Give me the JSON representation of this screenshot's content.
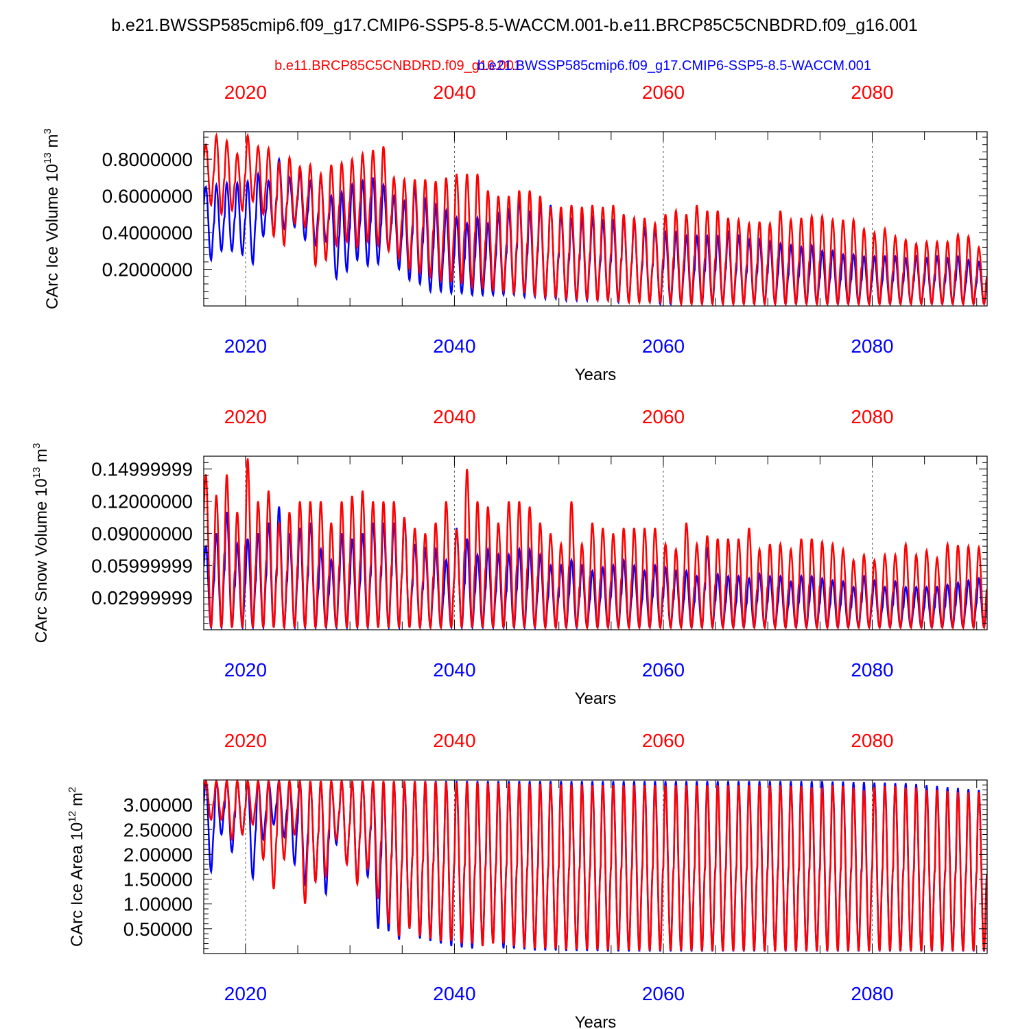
{
  "figure_title": "b.e21.BWSSP585cmip6.f09_g17.CMIP6-SSP5-8.5-WACCM.001-b.e11.BRCP85C5CNBDRD.f09_g16.001",
  "legend": {
    "red_label": "b.e11.BRCP85C5CNBDRD.f09_g16.001",
    "blue_label": "b.e21.BWSSP585cmip6.f09_g17.CMIP6-SSP5-8.5-WACCM.001"
  },
  "colors": {
    "red": "#ff0000",
    "blue": "#0000ff",
    "axis": "#000000",
    "grid": "#555555"
  },
  "chart_data": [
    {
      "type": "line",
      "name": "ice-volume",
      "ylabel": "CArc Ice Volume 10",
      "ylabel_exp": "13",
      "ylabel_unit": " m",
      "ylabel_unit_exp": "3",
      "xlabel": "Years",
      "xlim": [
        2016,
        2091
      ],
      "ylim": [
        0.0,
        0.95
      ],
      "xticks": [
        2020,
        2040,
        2060,
        2080
      ],
      "xtick_labels": [
        "2020",
        "2040",
        "2060",
        "2080"
      ],
      "yticks": [
        0.2,
        0.4,
        0.6,
        0.8
      ],
      "ytick_labels": [
        "0.2000000",
        "0.4000000",
        "0.6000000",
        "0.8000000"
      ],
      "series": [
        {
          "name": "blue",
          "color": "#0000ff",
          "x_start": 2016,
          "peaks": [
            0.65,
            0.66,
            0.67,
            0.67,
            0.68,
            0.72,
            0.68,
            0.8,
            0.7,
            0.73,
            0.68,
            0.7,
            0.6,
            0.62,
            0.66,
            0.68,
            0.7,
            0.66,
            0.6,
            0.57,
            0.65,
            0.58,
            0.55,
            0.52,
            0.48,
            0.45,
            0.48,
            0.45,
            0.5,
            0.52,
            0.58,
            0.52,
            0.55,
            0.55,
            0.5,
            0.48,
            0.48,
            0.48,
            0.46,
            0.46,
            0.48,
            0.46,
            0.42,
            0.42,
            0.4,
            0.4,
            0.38,
            0.38,
            0.38,
            0.38,
            0.4,
            0.38,
            0.36,
            0.36,
            0.35,
            0.34,
            0.33,
            0.32,
            0.33,
            0.3,
            0.3,
            0.28,
            0.28,
            0.27,
            0.27,
            0.27,
            0.27,
            0.26,
            0.27,
            0.26,
            0.27,
            0.26,
            0.27,
            0.25,
            0.24
          ],
          "troughs": [
            0.25,
            0.3,
            0.3,
            0.28,
            0.23,
            0.38,
            0.4,
            0.42,
            0.43,
            0.36,
            0.33,
            0.35,
            0.15,
            0.19,
            0.25,
            0.22,
            0.23,
            0.3,
            0.2,
            0.14,
            0.12,
            0.08,
            0.08,
            0.07,
            0.07,
            0.06,
            0.06,
            0.06,
            0.06,
            0.06,
            0.05,
            0.05,
            0.04,
            0.04,
            0.03,
            0.03,
            0.03,
            0.03,
            0.03,
            0.02,
            0.02,
            0.02,
            0.02,
            0.01,
            0.01,
            0.01,
            0.01,
            0.01,
            0.01,
            0.01,
            0.01,
            0.01,
            0.01,
            0.01,
            0.01,
            0.01,
            0.01,
            0.01,
            0.01,
            0.01,
            0.01,
            0.01,
            0.01,
            0.01,
            0.01,
            0.01,
            0.01,
            0.01,
            0.01,
            0.01,
            0.01,
            0.01,
            0.01,
            0.01,
            0.01
          ]
        },
        {
          "name": "red",
          "color": "#ff0000",
          "x_start": 2016,
          "peaks": [
            0.88,
            0.93,
            0.9,
            0.83,
            0.93,
            0.87,
            0.86,
            0.78,
            0.81,
            0.76,
            0.77,
            0.72,
            0.77,
            0.78,
            0.8,
            0.83,
            0.85,
            0.87,
            0.7,
            0.69,
            0.69,
            0.69,
            0.68,
            0.7,
            0.72,
            0.72,
            0.72,
            0.63,
            0.6,
            0.6,
            0.63,
            0.63,
            0.6,
            0.54,
            0.54,
            0.55,
            0.54,
            0.55,
            0.54,
            0.55,
            0.5,
            0.48,
            0.48,
            0.45,
            0.5,
            0.52,
            0.5,
            0.55,
            0.52,
            0.52,
            0.48,
            0.47,
            0.45,
            0.46,
            0.45,
            0.52,
            0.47,
            0.48,
            0.49,
            0.49,
            0.47,
            0.47,
            0.47,
            0.42,
            0.4,
            0.42,
            0.38,
            0.36,
            0.34,
            0.35,
            0.35,
            0.35,
            0.39,
            0.38,
            0.32
          ],
          "troughs": [
            0.55,
            0.5,
            0.52,
            0.52,
            0.57,
            0.5,
            0.38,
            0.33,
            0.45,
            0.43,
            0.22,
            0.25,
            0.33,
            0.35,
            0.32,
            0.35,
            0.33,
            0.3,
            0.26,
            0.2,
            0.18,
            0.16,
            0.14,
            0.13,
            0.12,
            0.1,
            0.1,
            0.09,
            0.08,
            0.07,
            0.07,
            0.06,
            0.05,
            0.05,
            0.04,
            0.04,
            0.04,
            0.03,
            0.03,
            0.03,
            0.02,
            0.02,
            0.02,
            0.02,
            0.02,
            0.01,
            0.01,
            0.01,
            0.01,
            0.01,
            0.01,
            0.01,
            0.01,
            0.01,
            0.01,
            0.01,
            0.01,
            0.01,
            0.01,
            0.01,
            0.01,
            0.01,
            0.01,
            0.01,
            0.01,
            0.01,
            0.01,
            0.01,
            0.01,
            0.01,
            0.01,
            0.01,
            0.01,
            0.01,
            0.01
          ]
        }
      ]
    },
    {
      "type": "line",
      "name": "snow-volume",
      "ylabel": "CArc Snow Volume 10",
      "ylabel_exp": "13",
      "ylabel_unit": " m",
      "ylabel_unit_exp": "3",
      "xlabel": "Years",
      "xlim": [
        2016,
        2091
      ],
      "ylim": [
        0.0,
        0.162
      ],
      "xticks": [
        2020,
        2040,
        2060,
        2080
      ],
      "xtick_labels": [
        "2020",
        "2040",
        "2060",
        "2080"
      ],
      "yticks": [
        0.03,
        0.06,
        0.09,
        0.12,
        0.15
      ],
      "ytick_labels": [
        "0.02999999",
        "0.05999999",
        "0.09000000",
        "0.12000000",
        "0.14999999"
      ],
      "series": [
        {
          "name": "blue",
          "color": "#0000ff",
          "x_start": 2016,
          "peaks": [
            0.078,
            0.09,
            0.11,
            0.08,
            0.085,
            0.09,
            0.1,
            0.115,
            0.09,
            0.095,
            0.1,
            0.075,
            0.065,
            0.09,
            0.085,
            0.09,
            0.1,
            0.1,
            0.1,
            0.105,
            0.08,
            0.075,
            0.075,
            0.065,
            0.095,
            0.085,
            0.07,
            0.075,
            0.07,
            0.07,
            0.075,
            0.075,
            0.07,
            0.06,
            0.06,
            0.065,
            0.06,
            0.055,
            0.058,
            0.06,
            0.065,
            0.06,
            0.055,
            0.06,
            0.058,
            0.055,
            0.055,
            0.05,
            0.075,
            0.052,
            0.05,
            0.05,
            0.048,
            0.052,
            0.05,
            0.05,
            0.045,
            0.05,
            0.05,
            0.048,
            0.046,
            0.045,
            0.04,
            0.05,
            0.046,
            0.04,
            0.045,
            0.04,
            0.04,
            0.04,
            0.04,
            0.042,
            0.044,
            0.046,
            0.048
          ],
          "troughs": [
            0.002,
            0.002,
            0.002,
            0.002,
            0.002,
            0.002,
            0.002,
            0.002,
            0.002,
            0.002,
            0.002,
            0.002,
            0.002,
            0.002,
            0.002,
            0.002,
            0.002,
            0.002,
            0.002,
            0.002,
            0.002,
            0.002,
            0.002,
            0.002,
            0.002,
            0.002,
            0.002,
            0.002,
            0.002,
            0.002,
            0.002,
            0.002,
            0.002,
            0.002,
            0.002,
            0.002,
            0.002,
            0.002,
            0.002,
            0.002,
            0.002,
            0.002,
            0.002,
            0.002,
            0.002,
            0.002,
            0.002,
            0.002,
            0.002,
            0.002,
            0.002,
            0.002,
            0.002,
            0.002,
            0.002,
            0.002,
            0.002,
            0.002,
            0.002,
            0.002,
            0.002,
            0.002,
            0.002,
            0.002,
            0.002,
            0.002,
            0.002,
            0.002,
            0.002,
            0.002,
            0.002,
            0.002,
            0.002,
            0.002,
            0.002
          ]
        },
        {
          "name": "red",
          "color": "#ff0000",
          "x_start": 2016,
          "peaks": [
            0.145,
            0.126,
            0.145,
            0.11,
            0.16,
            0.12,
            0.13,
            0.1,
            0.11,
            0.12,
            0.12,
            0.12,
            0.1,
            0.12,
            0.125,
            0.13,
            0.12,
            0.12,
            0.12,
            0.105,
            0.095,
            0.09,
            0.1,
            0.12,
            0.094,
            0.15,
            0.12,
            0.115,
            0.1,
            0.12,
            0.12,
            0.115,
            0.1,
            0.09,
            0.08,
            0.12,
            0.08,
            0.1,
            0.095,
            0.09,
            0.095,
            0.095,
            0.095,
            0.095,
            0.08,
            0.075,
            0.1,
            0.08,
            0.088,
            0.085,
            0.085,
            0.085,
            0.095,
            0.075,
            0.08,
            0.08,
            0.075,
            0.085,
            0.085,
            0.082,
            0.08,
            0.075,
            0.065,
            0.07,
            0.065,
            0.07,
            0.07,
            0.08,
            0.07,
            0.074,
            0.067,
            0.08,
            0.079,
            0.078,
            0.077
          ],
          "troughs": [
            0.002,
            0.002,
            0.002,
            0.002,
            0.002,
            0.002,
            0.002,
            0.002,
            0.002,
            0.002,
            0.002,
            0.002,
            0.002,
            0.002,
            0.002,
            0.002,
            0.002,
            0.002,
            0.002,
            0.002,
            0.002,
            0.002,
            0.002,
            0.002,
            0.002,
            0.002,
            0.002,
            0.002,
            0.002,
            0.002,
            0.002,
            0.002,
            0.002,
            0.002,
            0.002,
            0.002,
            0.002,
            0.002,
            0.002,
            0.002,
            0.002,
            0.002,
            0.002,
            0.002,
            0.002,
            0.002,
            0.002,
            0.002,
            0.002,
            0.002,
            0.002,
            0.002,
            0.002,
            0.002,
            0.002,
            0.002,
            0.002,
            0.002,
            0.002,
            0.002,
            0.002,
            0.002,
            0.002,
            0.002,
            0.002,
            0.002,
            0.002,
            0.002,
            0.002,
            0.002,
            0.002,
            0.002,
            0.002,
            0.002,
            0.002
          ]
        }
      ]
    },
    {
      "type": "line",
      "name": "ice-area",
      "ylabel": "CArc Ice Area 10",
      "ylabel_exp": "12",
      "ylabel_unit": " m",
      "ylabel_unit_exp": "2",
      "xlabel": "Years",
      "xlim": [
        2016,
        2091
      ],
      "ylim": [
        0.0,
        3.5
      ],
      "xticks": [
        2020,
        2040,
        2060,
        2080
      ],
      "xtick_labels": [
        "2020",
        "2040",
        "2060",
        "2080"
      ],
      "yticks": [
        0.5,
        1.0,
        1.5,
        2.0,
        2.5,
        3.0
      ],
      "ytick_labels": [
        "0.50000",
        "1.00000",
        "1.50000",
        "2.00000",
        "2.50000",
        "3.00000"
      ],
      "series": [
        {
          "name": "blue",
          "color": "#0000ff",
          "x_start": 2016,
          "peaks": [
            3.48,
            3.48,
            3.48,
            3.48,
            3.48,
            3.48,
            3.48,
            3.48,
            3.48,
            3.48,
            3.48,
            3.48,
            3.48,
            3.48,
            3.48,
            3.48,
            3.48,
            3.48,
            3.48,
            3.48,
            3.48,
            3.48,
            3.48,
            3.48,
            3.48,
            3.48,
            3.48,
            3.48,
            3.48,
            3.48,
            3.48,
            3.48,
            3.48,
            3.48,
            3.48,
            3.48,
            3.48,
            3.48,
            3.48,
            3.48,
            3.48,
            3.48,
            3.48,
            3.48,
            3.48,
            3.48,
            3.48,
            3.48,
            3.48,
            3.48,
            3.48,
            3.48,
            3.48,
            3.48,
            3.48,
            3.48,
            3.48,
            3.48,
            3.48,
            3.48,
            3.47,
            3.47,
            3.46,
            3.46,
            3.45,
            3.45,
            3.44,
            3.44,
            3.42,
            3.4,
            3.38,
            3.36,
            3.34,
            3.32,
            3.3
          ],
          "troughs": [
            1.65,
            2.4,
            2.05,
            2.4,
            1.52,
            2.3,
            2.6,
            2.35,
            1.8,
            1.4,
            1.45,
            1.2,
            2.2,
            1.8,
            1.45,
            1.55,
            0.5,
            0.45,
            0.28,
            0.5,
            0.3,
            0.25,
            0.2,
            0.15,
            0.12,
            0.1,
            0.15,
            0.2,
            0.1,
            0.1,
            0.08,
            0.06,
            0.06,
            0.06,
            0.05,
            0.05,
            0.05,
            0.05,
            0.04,
            0.04,
            0.04,
            0.04,
            0.04,
            0.04,
            0.04,
            0.04,
            0.04,
            0.04,
            0.04,
            0.04,
            0.04,
            0.04,
            0.04,
            0.04,
            0.04,
            0.04,
            0.04,
            0.04,
            0.04,
            0.04,
            0.04,
            0.04,
            0.04,
            0.04,
            0.04,
            0.04,
            0.04,
            0.04,
            0.04,
            0.04,
            0.04,
            0.04,
            0.04,
            0.04,
            0.04
          ]
        },
        {
          "name": "red",
          "color": "#ff0000",
          "x_start": 2016,
          "peaks": [
            3.48,
            3.48,
            3.48,
            3.48,
            3.48,
            3.48,
            3.48,
            3.48,
            3.48,
            3.48,
            3.48,
            3.48,
            3.48,
            3.48,
            3.48,
            3.48,
            3.48,
            3.48,
            3.48,
            3.48,
            3.47,
            3.47,
            3.46,
            3.46,
            3.45,
            3.45,
            3.45,
            3.44,
            3.44,
            3.43,
            3.43,
            3.42,
            3.42,
            3.42,
            3.41,
            3.41,
            3.41,
            3.4,
            3.4,
            3.4,
            3.4,
            3.4,
            3.4,
            3.4,
            3.4,
            3.4,
            3.4,
            3.4,
            3.4,
            3.4,
            3.4,
            3.4,
            3.4,
            3.4,
            3.4,
            3.4,
            3.38,
            3.38,
            3.36,
            3.35,
            3.4,
            3.38,
            3.35,
            3.3,
            3.36,
            3.38,
            3.38,
            3.35,
            3.35,
            3.3,
            3.3,
            3.28,
            3.26,
            3.25,
            3.25
          ],
          "troughs": [
            2.7,
            2.7,
            2.3,
            2.4,
            2.6,
            1.9,
            1.3,
            1.9,
            2.4,
            1.0,
            1.45,
            1.55,
            2.3,
            1.8,
            1.4,
            1.7,
            1.1,
            0.6,
            0.35,
            0.5,
            0.35,
            0.3,
            0.25,
            0.25,
            0.2,
            0.2,
            0.15,
            0.2,
            0.2,
            0.15,
            0.12,
            0.1,
            0.1,
            0.1,
            0.08,
            0.08,
            0.08,
            0.08,
            0.07,
            0.07,
            0.07,
            0.06,
            0.06,
            0.06,
            0.06,
            0.06,
            0.06,
            0.05,
            0.05,
            0.05,
            0.05,
            0.05,
            0.05,
            0.05,
            0.05,
            0.05,
            0.05,
            0.05,
            0.05,
            0.05,
            0.05,
            0.05,
            0.05,
            0.05,
            0.05,
            0.05,
            0.05,
            0.05,
            0.05,
            0.05,
            0.05,
            0.05,
            0.05,
            0.05,
            0.05
          ]
        }
      ]
    }
  ]
}
